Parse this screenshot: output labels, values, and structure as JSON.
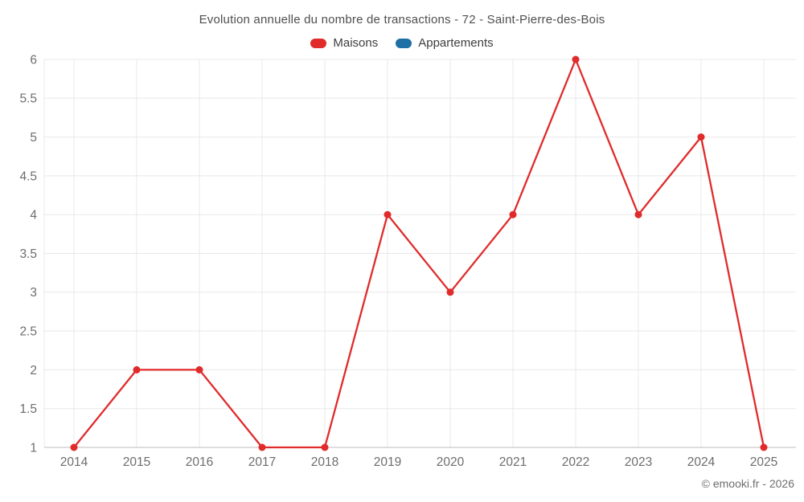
{
  "title": "Evolution annuelle du nombre de transactions - 72 - Saint-Pierre-des-Bois",
  "footer": "© emooki.fr - 2026",
  "legend": {
    "items": [
      {
        "label": "Maisons",
        "color": "#e02b2b"
      },
      {
        "label": "Appartements",
        "color": "#1d6fa5"
      }
    ]
  },
  "colors": {
    "maisons": "#e02b2b",
    "appartements": "#1d6fa5",
    "gridline": "#e8e8e8",
    "axis_line": "#bdbdbd",
    "tick_label": "#6d6d6d"
  },
  "chart_data": {
    "type": "line",
    "title": "Evolution annuelle du nombre de transactions - 72 - Saint-Pierre-des-Bois",
    "categories": [
      "2014",
      "2015",
      "2016",
      "2017",
      "2018",
      "2019",
      "2020",
      "2021",
      "2022",
      "2023",
      "2024",
      "2025"
    ],
    "series": [
      {
        "name": "Maisons",
        "color": "#e02b2b",
        "values": [
          1,
          2,
          2,
          1,
          1,
          4,
          3,
          4,
          6,
          4,
          5,
          1
        ]
      },
      {
        "name": "Appartements",
        "color": "#1d6fa5",
        "values": []
      }
    ],
    "xlabel": "",
    "ylabel": "",
    "ylim": [
      1,
      6
    ],
    "ytick_step": 0.5,
    "y_ticks": [
      1,
      1.5,
      2,
      2.5,
      3,
      3.5,
      4,
      4.5,
      5,
      5.5,
      6
    ],
    "grid": true,
    "legend_position": "top",
    "markers": true
  }
}
